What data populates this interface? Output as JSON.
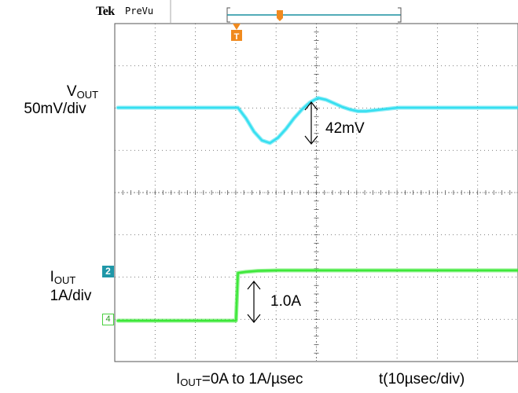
{
  "header": {
    "logo": "Tek",
    "status": "PreVu",
    "trigger_letter": "T"
  },
  "labels": {
    "vout_main": "V",
    "vout_sub": "OUT",
    "vout_scale": "50mV/div",
    "iout_main": "I",
    "iout_sub": "OUT",
    "iout_scale": "1A/div",
    "vout_annotation": "42mV",
    "iout_annotation": "1.0A",
    "footer_left_main": "I",
    "footer_left_sub": "OUT",
    "footer_left_rest": "=0A to 1A/µsec",
    "footer_right": "t(10µsec/div)"
  },
  "markers": {
    "ch2": "2",
    "ch4": "4"
  },
  "colors": {
    "vout": "#35dff0",
    "iout": "#3ee83a",
    "trigger": "#f08a1e",
    "grid": "#555555"
  },
  "chart_data": {
    "type": "line",
    "x_unit": "µs",
    "xlim": [
      0,
      100
    ],
    "x_tick_step": 10,
    "series": [
      {
        "name": "VOUT",
        "unit": "mV",
        "x": [
          0,
          5,
          10,
          15,
          20,
          25,
          28,
          30,
          32,
          34,
          36,
          38,
          40,
          42,
          44,
          46,
          48,
          50,
          52,
          54,
          56,
          58,
          60,
          62,
          64,
          66,
          68,
          70,
          75,
          80,
          85,
          90,
          95,
          100
        ],
        "values": [
          0,
          0,
          0,
          0,
          0,
          0,
          0,
          0,
          -12,
          -27,
          -37,
          -40,
          -34,
          -24,
          -12,
          -2,
          6,
          11,
          9,
          5,
          1,
          -2,
          -4,
          -4,
          -3,
          -2,
          -1,
          0,
          0,
          0,
          0,
          0,
          0,
          0
        ]
      },
      {
        "name": "IOUT",
        "unit": "A",
        "x": [
          0,
          10,
          20,
          28,
          29.5,
          30,
          32,
          35,
          40,
          50,
          60,
          70,
          80,
          90,
          100
        ],
        "values": [
          0,
          0,
          0,
          0,
          0,
          0.95,
          0.97,
          0.99,
          1.0,
          1.0,
          1.0,
          1.0,
          1.0,
          1.0,
          1.0
        ]
      }
    ],
    "annotations": [
      "42mV",
      "1.0A"
    ],
    "grid": true
  }
}
